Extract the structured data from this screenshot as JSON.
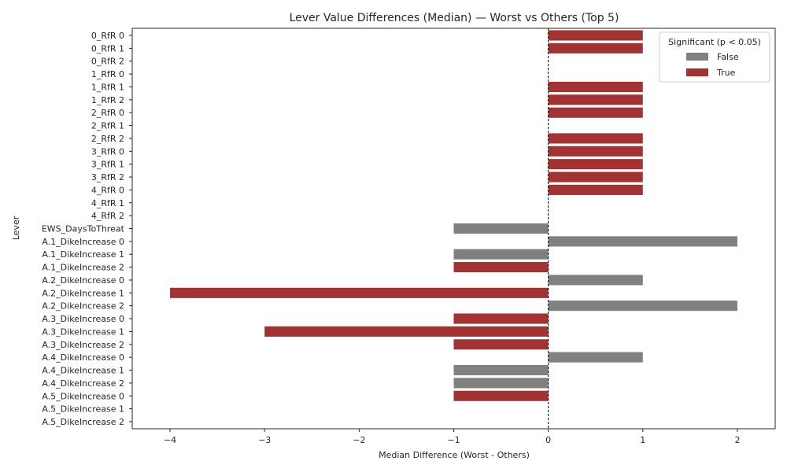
{
  "chart_data": {
    "type": "bar",
    "orientation": "horizontal",
    "title": "Lever Value Differences (Median) — Worst vs Others (Top 5)",
    "xlabel": "Median Difference (Worst - Others)",
    "ylabel": "Lever",
    "xlim": [
      -4.4,
      2.4
    ],
    "xticks": [
      -4,
      -3,
      -2,
      -1,
      0,
      1,
      2
    ],
    "xtick_labels": [
      "−4",
      "−3",
      "−2",
      "−1",
      "0",
      "1",
      "2"
    ],
    "reference_line": {
      "x": 0,
      "style": "dashed"
    },
    "grid": false,
    "legend": {
      "title": "Significant (p < 0.05)",
      "placement": "top-right",
      "entries": [
        {
          "label": "False",
          "color": "#808080"
        },
        {
          "label": "True",
          "color": "#a33232"
        }
      ]
    },
    "categories": [
      "0_RfR 0",
      "0_RfR 1",
      "0_RfR 2",
      "1_RfR 0",
      "1_RfR 1",
      "1_RfR 2",
      "2_RfR 0",
      "2_RfR 1",
      "2_RfR 2",
      "3_RfR 0",
      "3_RfR 1",
      "3_RfR 2",
      "4_RfR 0",
      "4_RfR 1",
      "4_RfR 2",
      "EWS_DaysToThreat",
      "A.1_DikeIncrease 0",
      "A.1_DikeIncrease 1",
      "A.1_DikeIncrease 2",
      "A.2_DikeIncrease 0",
      "A.2_DikeIncrease 1",
      "A.2_DikeIncrease 2",
      "A.3_DikeIncrease 0",
      "A.3_DikeIncrease 1",
      "A.3_DikeIncrease 2",
      "A.4_DikeIncrease 0",
      "A.4_DikeIncrease 1",
      "A.4_DikeIncrease 2",
      "A.5_DikeIncrease 0",
      "A.5_DikeIncrease 1",
      "A.5_DikeIncrease 2"
    ],
    "values": [
      1,
      1,
      0,
      0,
      1,
      1,
      1,
      0,
      1,
      1,
      1,
      1,
      1,
      0,
      0,
      -1,
      2,
      -1,
      -1,
      1,
      -4,
      2,
      -1,
      -3,
      -1,
      1,
      -1,
      -1,
      -1,
      0,
      0
    ],
    "significant": [
      true,
      true,
      false,
      false,
      true,
      true,
      true,
      false,
      true,
      true,
      true,
      true,
      true,
      false,
      false,
      false,
      false,
      false,
      true,
      false,
      true,
      false,
      true,
      true,
      true,
      false,
      false,
      false,
      true,
      false,
      false
    ]
  }
}
